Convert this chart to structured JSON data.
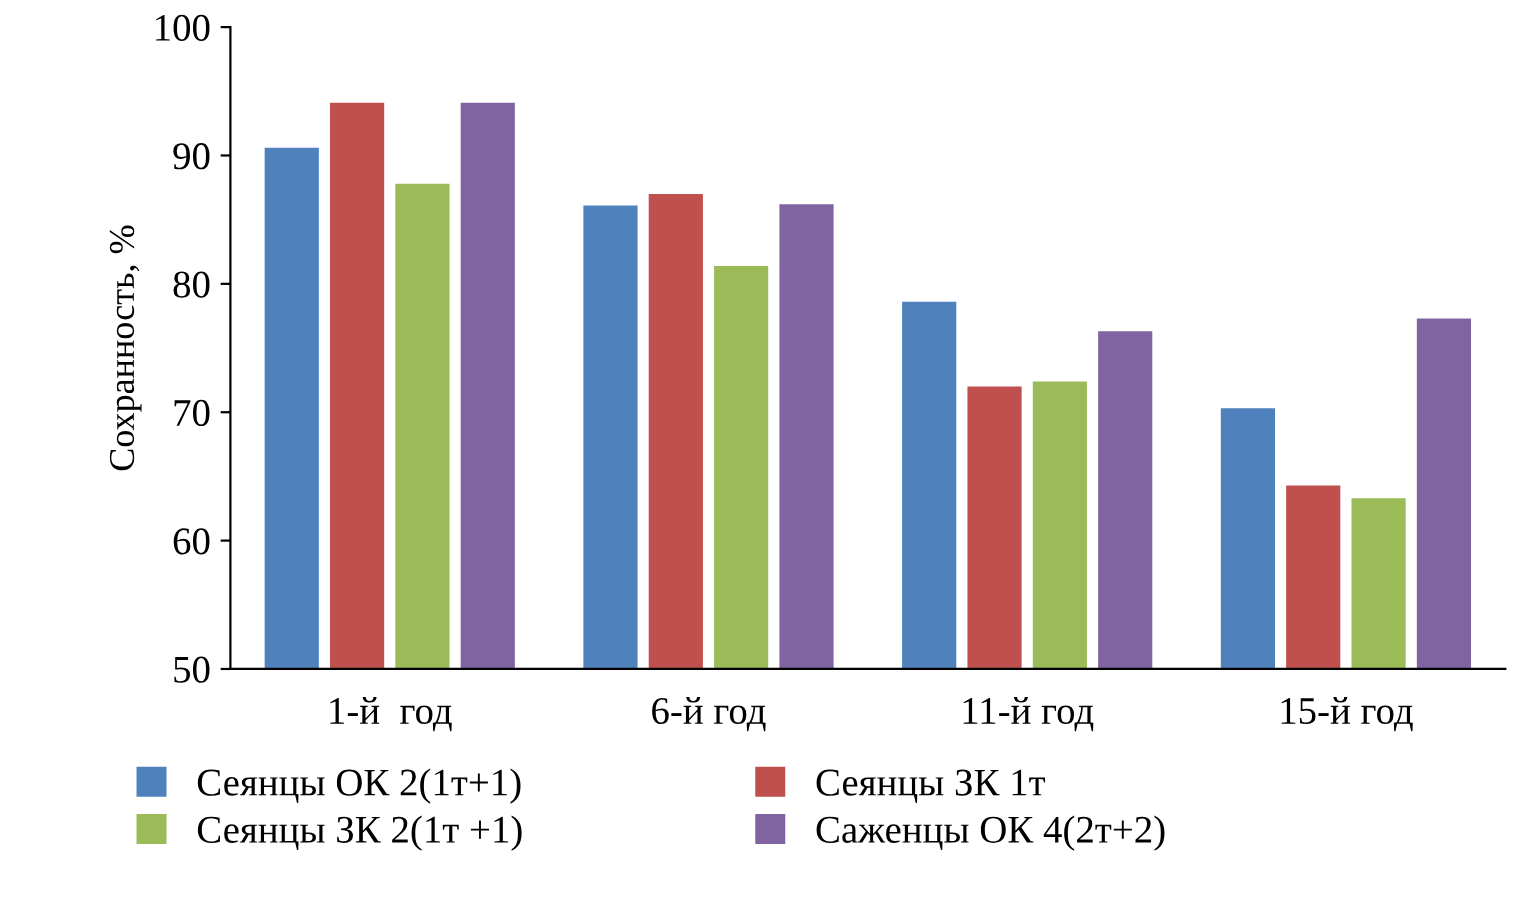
{
  "chart_data": {
    "type": "bar",
    "ylabel": "Сохранность, %",
    "categories": [
      "1-й  год",
      "6-й год",
      "11-й год",
      "15-й год"
    ],
    "series": [
      {
        "name": "Сеянцы ОК 2(1т+1)",
        "color": "#4f81bd",
        "values": [
          90.6,
          86.1,
          78.6,
          70.3
        ]
      },
      {
        "name": "Сеянцы ЗК 1т",
        "color": "#c0504d",
        "values": [
          94.1,
          87.0,
          72.0,
          64.3
        ]
      },
      {
        "name": "Сеянцы ЗК 2(1т +1)",
        "color": "#9bbb59",
        "values": [
          87.8,
          81.4,
          72.4,
          63.3
        ]
      },
      {
        "name": "Саженцы ОК 4(2т+2)",
        "color": "#8064a2",
        "values": [
          94.1,
          86.2,
          76.3,
          77.3
        ]
      }
    ],
    "ylim": [
      50,
      100
    ],
    "yticks": [
      50,
      60,
      70,
      80,
      90,
      100
    ],
    "grid": false,
    "legend": "bottom"
  }
}
